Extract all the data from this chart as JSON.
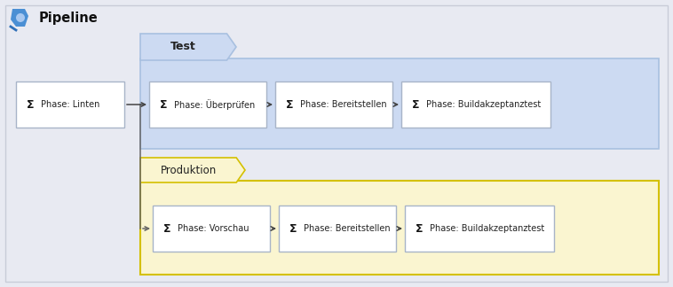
{
  "bg_color": "#e8eaf2",
  "title": "Pipeline",
  "title_fontsize": 10.5,
  "outer_border_color": "#c8ccd8",
  "test_group_label": "Test",
  "test_group_bg": "#ccdaf2",
  "test_group_border": "#a8c0e0",
  "prod_group_label": "Produktion",
  "prod_group_bg": "#faf5d0",
  "prod_group_border": "#d4c000",
  "box_bg": "#ffffff",
  "box_border": "#a8b4c8",
  "box_text_color": "#222222",
  "arrow_color": "#444444",
  "stages_row1": [
    "Phase: Linten",
    "Phase: Überprüfen",
    "Phase: Bereitstellen",
    "Phase: Buildakzeptanztest"
  ],
  "stages_row2": [
    "Phase: Vorschau",
    "Phase: Bereitstellen",
    "Phase: Buildakzeptanztest"
  ],
  "font_size": 7.0,
  "connector_color": "#666666",
  "logo_color": "#4a7fc0"
}
